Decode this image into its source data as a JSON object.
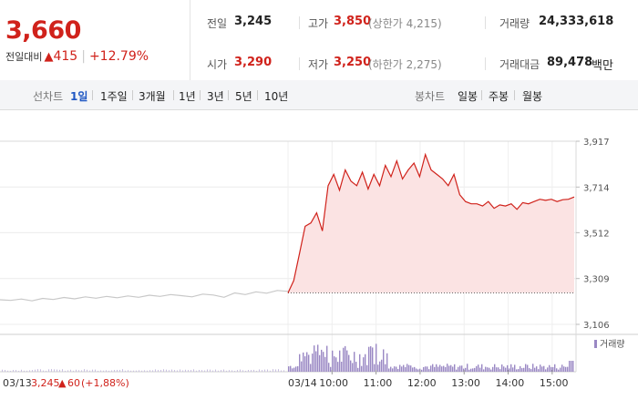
{
  "summary": {
    "price": "3,660",
    "change_label": "전일대비",
    "change_amount": "415",
    "change_pct": "+12.79%",
    "prev_close": {
      "label": "전일",
      "value": "3,245"
    },
    "open": {
      "label": "시가",
      "value": "3,290"
    },
    "high": {
      "label": "고가",
      "value": "3,850",
      "sub": "(상한가 4,215)"
    },
    "low": {
      "label": "저가",
      "value": "3,250",
      "sub": "(하한가 2,275)"
    },
    "volume": {
      "label": "거래량",
      "value": "24,333,618"
    },
    "amount": {
      "label": "거래대금",
      "value": "89,478",
      "unit": "백만"
    }
  },
  "period_bar": {
    "line_label": "선차트",
    "periods": [
      "1일",
      "1주일",
      "3개월",
      "1년",
      "3년",
      "5년",
      "10년"
    ],
    "selected": "1일",
    "candle_label": "봉차트",
    "candles": [
      "일봉",
      "주봉",
      "월봉"
    ]
  },
  "colors": {
    "up": "#d0221b",
    "prev_day_line": "#c8c8c8",
    "volume": "#9a88c4",
    "fill": "#fbe3e3"
  },
  "chart_data": {
    "type": "line",
    "yticks": [
      "3,917",
      "3,714",
      "3,512",
      "3,309",
      "3,106"
    ],
    "ytick_values": [
      3917,
      3714,
      3512,
      3309,
      3106
    ],
    "ylim": [
      3106,
      3917
    ],
    "prev_close_line": 3245,
    "prev_day_label": "03/13",
    "prev_day_close": "3,245",
    "prev_day_change": "60",
    "prev_day_pct": "(+1,88%)",
    "today_label": "03/14",
    "xticks": [
      "10:00",
      "11:00",
      "12:00",
      "13:00",
      "14:00",
      "15:00"
    ],
    "volume_legend": "거래량",
    "prev_day_series": [
      3215,
      3212,
      3218,
      3210,
      3221,
      3216,
      3225,
      3219,
      3228,
      3222,
      3230,
      3224,
      3232,
      3226,
      3235,
      3230,
      3238,
      3233,
      3228,
      3240,
      3236,
      3226,
      3245,
      3238,
      3250,
      3244,
      3256,
      3252
    ],
    "today_series": [
      3245,
      3300,
      3420,
      3540,
      3555,
      3600,
      3520,
      3720,
      3770,
      3700,
      3790,
      3740,
      3720,
      3780,
      3705,
      3770,
      3720,
      3810,
      3760,
      3830,
      3750,
      3790,
      3820,
      3760,
      3858,
      3790,
      3770,
      3750,
      3720,
      3770,
      3680,
      3650,
      3640,
      3640,
      3630,
      3650,
      3620,
      3635,
      3630,
      3640,
      3615,
      3645,
      3640,
      3650,
      3660,
      3655,
      3660,
      3650,
      3658,
      3660,
      3670
    ]
  }
}
